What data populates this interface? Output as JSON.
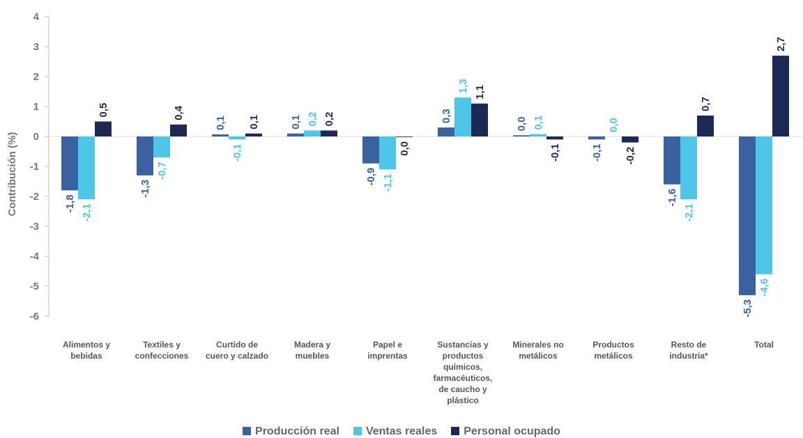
{
  "chart_data": {
    "type": "bar",
    "ylabel": "Contribución (%)",
    "categories": [
      "Alimentos y\nbebidas",
      "Textiles y\nconfecciones",
      "Curtido de\ncuero y calzado",
      "Madera y\nmuebles",
      "Papel e\nimprentas",
      "Sustancias y\nproductos\nquímicos,\nfarmacéuticos,\nde caucho y\nplástico",
      "Minerales no\nmetálicos",
      "Productos\nmetálicos",
      "Resto de\nindustria*",
      "Total"
    ],
    "series": [
      {
        "name": "Producción real",
        "color": "#3a62a0",
        "values": [
          -1.8,
          -1.3,
          0.07,
          0.1,
          -0.9,
          0.3,
          0.04,
          -0.1,
          -1.6,
          -5.3
        ],
        "value_labels": [
          "-1,8",
          "-1,3",
          "0,1",
          "0,1",
          "-0,9",
          "0,3",
          "0,0",
          "-0,1",
          "-1,6",
          "-5,3"
        ]
      },
      {
        "name": "Ventas reales",
        "color": "#4dc6e8",
        "values": [
          -2.1,
          -0.7,
          -0.1,
          0.2,
          -1.1,
          1.3,
          0.08,
          0.0,
          -2.1,
          -4.6
        ],
        "value_labels": [
          "-2,1",
          "-0,7",
          "-0,1",
          "0,2",
          "-1,1",
          "1,3",
          "0,1",
          "0,0",
          "-2,1",
          "-4,6"
        ]
      },
      {
        "name": "Personal ocupado",
        "color": "#1b2a55",
        "values": [
          0.5,
          0.4,
          0.1,
          0.2,
          -0.02,
          1.1,
          -0.1,
          -0.2,
          0.7,
          2.7
        ],
        "value_labels": [
          "0,5",
          "0,4",
          "0,1",
          "0,2",
          "0,0",
          "1,1",
          "-0,1",
          "-0,2",
          "0,7",
          "2,7"
        ]
      }
    ],
    "ylim": [
      -6,
      4
    ],
    "yticks": [
      -6,
      -5,
      -4,
      -3,
      -2,
      -1,
      0,
      1,
      2,
      3,
      4
    ],
    "legend": "bottom"
  }
}
